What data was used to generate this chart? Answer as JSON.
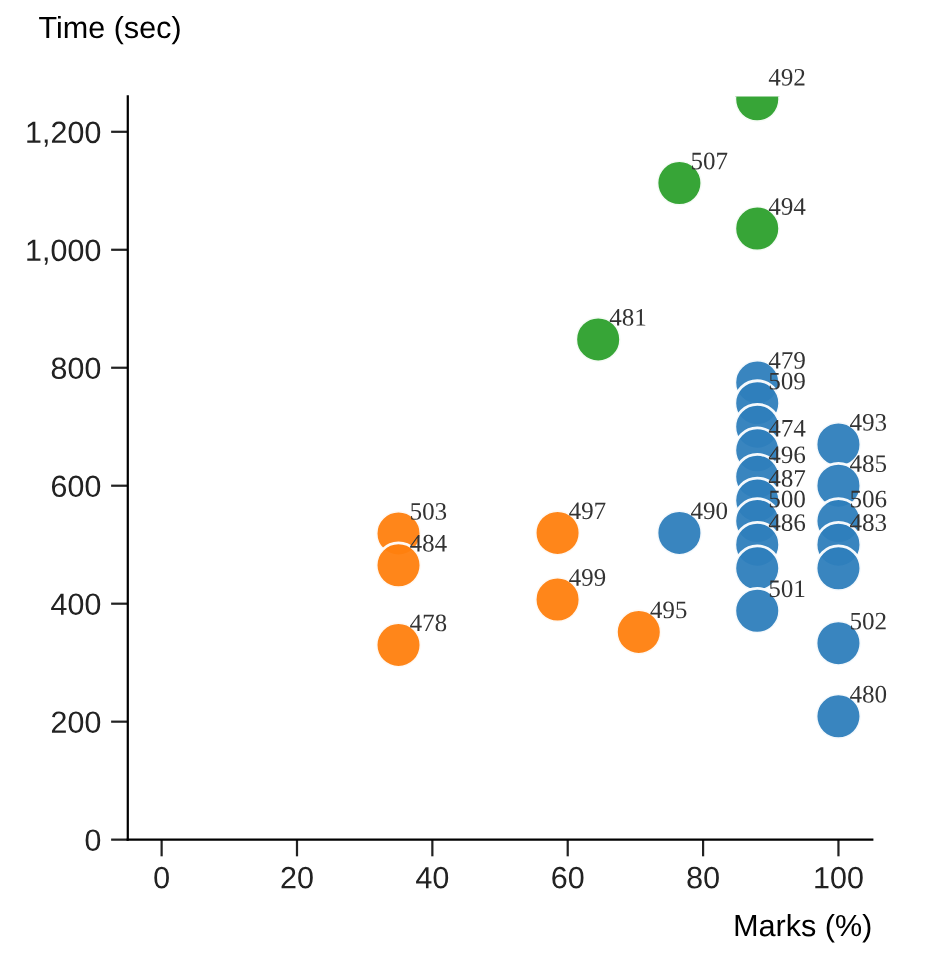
{
  "chart_data": {
    "type": "scatter",
    "xlabel": "Marks (%)",
    "ylabel": "Time (sec)",
    "xlim": [
      -5,
      105
    ],
    "xticks": [
      0,
      20,
      40,
      60,
      80,
      100
    ],
    "ylim": [
      0,
      1260
    ],
    "yticks": [
      0,
      200,
      400,
      600,
      800,
      {
        "value": 1000,
        "label": "1,000"
      },
      {
        "value": 1200,
        "label": "1,200"
      }
    ],
    "grid": false,
    "legend": false,
    "marker": "circle",
    "series": [
      {
        "color": "#2e7ebc",
        "x": [
          76.5,
          88,
          88,
          88,
          88,
          88,
          88,
          88,
          88,
          88,
          88,
          100,
          100,
          100,
          100,
          100,
          100,
          100
        ],
        "values": [
          520,
          775,
          740,
          700,
          660,
          615,
          575,
          540,
          500,
          460,
          388,
          670,
          600,
          540,
          500,
          460,
          333,
          209
        ]
      },
      {
        "color": "#ff7f0e",
        "x": [
          35,
          35,
          35,
          58.5,
          58.5,
          70.5
        ],
        "values": [
          519,
          465,
          330,
          520,
          407,
          352
        ]
      },
      {
        "color": "#2ca02c",
        "x": [
          64.5,
          76.5,
          88,
          88
        ],
        "values": [
          848,
          1113,
          1255,
          1036
        ]
      }
    ],
    "annotations": [
      {
        "text": "490",
        "x": 76.5,
        "y": 520
      },
      {
        "text": "479",
        "x": 88,
        "y": 775
      },
      {
        "text": "509",
        "x": 88,
        "y": 740
      },
      {
        "text": "474",
        "x": 88,
        "y": 660
      },
      {
        "text": "496",
        "x": 88,
        "y": 615
      },
      {
        "text": "487",
        "x": 88,
        "y": 575
      },
      {
        "text": "500",
        "x": 88,
        "y": 540
      },
      {
        "text": "486",
        "x": 88,
        "y": 500
      },
      {
        "text": "501",
        "x": 88,
        "y": 388
      },
      {
        "text": "493",
        "x": 100,
        "y": 670
      },
      {
        "text": "485",
        "x": 100,
        "y": 600
      },
      {
        "text": "506",
        "x": 100,
        "y": 540
      },
      {
        "text": "483",
        "x": 100,
        "y": 500
      },
      {
        "text": "502",
        "x": 100,
        "y": 333
      },
      {
        "text": "480",
        "x": 100,
        "y": 209
      },
      {
        "text": "503",
        "x": 35,
        "y": 519
      },
      {
        "text": "484",
        "x": 35,
        "y": 465
      },
      {
        "text": "478",
        "x": 35,
        "y": 330
      },
      {
        "text": "497",
        "x": 58.5,
        "y": 520
      },
      {
        "text": "499",
        "x": 58.5,
        "y": 407
      },
      {
        "text": "495",
        "x": 70.5,
        "y": 352
      },
      {
        "text": "481",
        "x": 64.5,
        "y": 848
      },
      {
        "text": "507",
        "x": 76.5,
        "y": 1113
      },
      {
        "text": "492",
        "x": 88,
        "y": 1255
      },
      {
        "text": "494",
        "x": 88,
        "y": 1036
      }
    ]
  }
}
